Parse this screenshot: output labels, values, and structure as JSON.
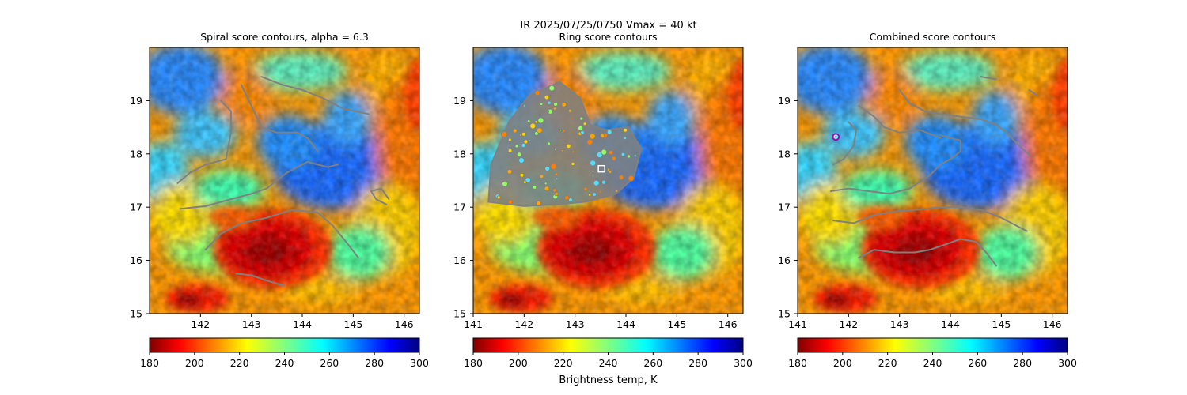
{
  "figure": {
    "suptitle_line1": "IR  2025/07/25/0750    Vmax = 40 kt",
    "colorbar_label": "Brightness temp, K"
  },
  "colorbar": {
    "colormap": "jet_r",
    "vmin": 180,
    "vmax": 300,
    "ticks": [
      180,
      200,
      220,
      240,
      260,
      280,
      300
    ]
  },
  "chart_data": [
    {
      "type": "heatmap",
      "title": "Spiral score contours, alpha =  6.3",
      "xlim": [
        141.0,
        146.3
      ],
      "ylim": [
        15.0,
        20.0
      ],
      "xticks": [
        "142",
        "143",
        "144",
        "145",
        "146"
      ],
      "yticks": [
        "15",
        "16",
        "17",
        "18",
        "19"
      ],
      "xlabel": "",
      "ylabel": "",
      "contours": [
        {
          "name": "spiral-contour-1",
          "points": [
            [
              142.4,
              19.0
            ],
            [
              142.6,
              18.8
            ],
            [
              142.6,
              18.4
            ],
            [
              142.5,
              17.9
            ],
            [
              142.1,
              17.8
            ],
            [
              141.8,
              17.65
            ],
            [
              141.55,
              17.45
            ]
          ]
        },
        {
          "name": "spiral-contour-2",
          "points": [
            [
              142.8,
              19.3
            ],
            [
              143.0,
              18.9
            ],
            [
              143.2,
              18.5
            ],
            [
              143.5,
              18.4
            ],
            [
              143.9,
              18.4
            ],
            [
              144.1,
              18.3
            ],
            [
              144.3,
              18.05
            ]
          ]
        },
        {
          "name": "spiral-contour-3",
          "points": [
            [
              141.6,
              16.97
            ],
            [
              142.1,
              17.02
            ],
            [
              142.6,
              17.15
            ],
            [
              143.0,
              17.25
            ],
            [
              143.3,
              17.35
            ],
            [
              143.7,
              17.65
            ],
            [
              144.1,
              17.85
            ],
            [
              144.5,
              17.75
            ],
            [
              144.7,
              17.8
            ]
          ]
        },
        {
          "name": "spiral-contour-4",
          "points": [
            [
              142.1,
              16.2
            ],
            [
              142.4,
              16.5
            ],
            [
              142.8,
              16.7
            ],
            [
              143.3,
              16.8
            ],
            [
              143.8,
              16.95
            ],
            [
              144.3,
              16.9
            ],
            [
              144.6,
              16.65
            ],
            [
              144.9,
              16.3
            ],
            [
              145.1,
              16.05
            ]
          ]
        },
        {
          "name": "spiral-contour-5",
          "points": [
            [
              143.2,
              19.45
            ],
            [
              143.6,
              19.3
            ],
            [
              144.0,
              19.2
            ],
            [
              144.4,
              19.05
            ],
            [
              144.8,
              18.85
            ],
            [
              145.3,
              18.75
            ]
          ]
        },
        {
          "name": "spiral-contour-6",
          "points": [
            [
              142.7,
              15.75
            ],
            [
              143.0,
              15.72
            ],
            [
              143.3,
              15.62
            ],
            [
              143.65,
              15.52
            ]
          ]
        },
        {
          "name": "spiral-contour-7",
          "points": [
            [
              145.65,
              17.05
            ],
            [
              145.45,
              17.15
            ],
            [
              145.35,
              17.3
            ],
            [
              145.55,
              17.35
            ],
            [
              145.7,
              17.15
            ]
          ]
        }
      ]
    },
    {
      "type": "heatmap",
      "title": "Ring score contours",
      "xlim": [
        141.0,
        146.3
      ],
      "ylim": [
        15.0,
        20.0
      ],
      "xticks": [
        "141",
        "142",
        "143",
        "144",
        "145",
        "146"
      ],
      "yticks": [
        "15",
        "16",
        "17",
        "18",
        "19"
      ],
      "xlabel": "",
      "ylabel": "",
      "ring_region": [
        [
          141.3,
          17.1
        ],
        [
          141.35,
          17.8
        ],
        [
          141.7,
          18.6
        ],
        [
          142.1,
          19.1
        ],
        [
          142.7,
          19.35
        ],
        [
          143.1,
          19.05
        ],
        [
          143.3,
          18.55
        ],
        [
          143.6,
          18.45
        ],
        [
          144.05,
          18.5
        ],
        [
          144.3,
          18.1
        ],
        [
          144.15,
          17.55
        ],
        [
          143.8,
          17.25
        ],
        [
          143.2,
          17.1
        ],
        [
          142.6,
          17.05
        ],
        [
          142.0,
          17.02
        ]
      ],
      "center_marker": {
        "x": 143.52,
        "y": 17.72
      }
    },
    {
      "type": "heatmap",
      "title": "Combined score contours",
      "xlim": [
        141.0,
        146.3
      ],
      "ylim": [
        15.0,
        20.0
      ],
      "xticks": [
        "141",
        "142",
        "143",
        "144",
        "145",
        "146"
      ],
      "yticks": [
        "15",
        "16",
        "17",
        "18",
        "19"
      ],
      "xlabel": "",
      "ylabel": "",
      "contours": [
        {
          "name": "combined-contour-1",
          "points": [
            [
              143.0,
              19.2
            ],
            [
              143.2,
              18.95
            ],
            [
              143.5,
              18.8
            ],
            [
              143.8,
              18.75
            ],
            [
              144.2,
              18.7
            ],
            [
              144.6,
              18.65
            ],
            [
              144.9,
              18.55
            ],
            [
              145.1,
              18.4
            ],
            [
              145.3,
              18.2
            ],
            [
              145.55,
              17.98
            ]
          ]
        },
        {
          "name": "combined-contour-2",
          "points": [
            [
              141.65,
              17.3
            ],
            [
              142.0,
              17.35
            ],
            [
              142.4,
              17.3
            ],
            [
              142.8,
              17.25
            ],
            [
              143.2,
              17.35
            ],
            [
              143.6,
              17.6
            ],
            [
              143.8,
              17.8
            ],
            [
              144.0,
              17.9
            ],
            [
              144.2,
              18.05
            ],
            [
              144.2,
              18.25
            ],
            [
              144.0,
              18.3
            ],
            [
              143.8,
              18.35
            ]
          ]
        },
        {
          "name": "combined-contour-3",
          "points": [
            [
              141.7,
              17.8
            ],
            [
              141.9,
              17.9
            ],
            [
              142.1,
              18.15
            ],
            [
              142.15,
              18.45
            ],
            [
              142.0,
              18.6
            ]
          ]
        },
        {
          "name": "combined-contour-4",
          "points": [
            [
              142.2,
              18.9
            ],
            [
              142.5,
              18.7
            ],
            [
              142.7,
              18.5
            ],
            [
              143.0,
              18.4
            ],
            [
              143.4,
              18.45
            ],
            [
              143.8,
              18.3
            ]
          ]
        },
        {
          "name": "combined-contour-5",
          "points": [
            [
              141.7,
              16.75
            ],
            [
              142.1,
              16.7
            ],
            [
              142.5,
              16.85
            ],
            [
              142.9,
              16.92
            ],
            [
              143.3,
              16.95
            ],
            [
              143.8,
              17.0
            ],
            [
              144.2,
              17.0
            ],
            [
              144.6,
              16.95
            ],
            [
              145.0,
              16.8
            ],
            [
              145.3,
              16.65
            ],
            [
              145.5,
              16.55
            ]
          ]
        },
        {
          "name": "combined-contour-6",
          "points": [
            [
              142.2,
              16.05
            ],
            [
              142.5,
              16.2
            ],
            [
              142.9,
              16.15
            ],
            [
              143.3,
              16.15
            ],
            [
              143.6,
              16.2
            ],
            [
              143.9,
              16.3
            ],
            [
              144.2,
              16.4
            ],
            [
              144.5,
              16.35
            ],
            [
              144.7,
              16.15
            ],
            [
              144.9,
              15.9
            ]
          ]
        },
        {
          "name": "combined-contour-7",
          "points": [
            [
              145.55,
              19.2
            ],
            [
              145.7,
              19.1
            ]
          ]
        },
        {
          "name": "combined-contour-8",
          "points": [
            [
              144.6,
              19.45
            ],
            [
              144.9,
              19.4
            ]
          ]
        }
      ],
      "center_marker": {
        "x": 141.75,
        "y": 18.32
      }
    }
  ]
}
